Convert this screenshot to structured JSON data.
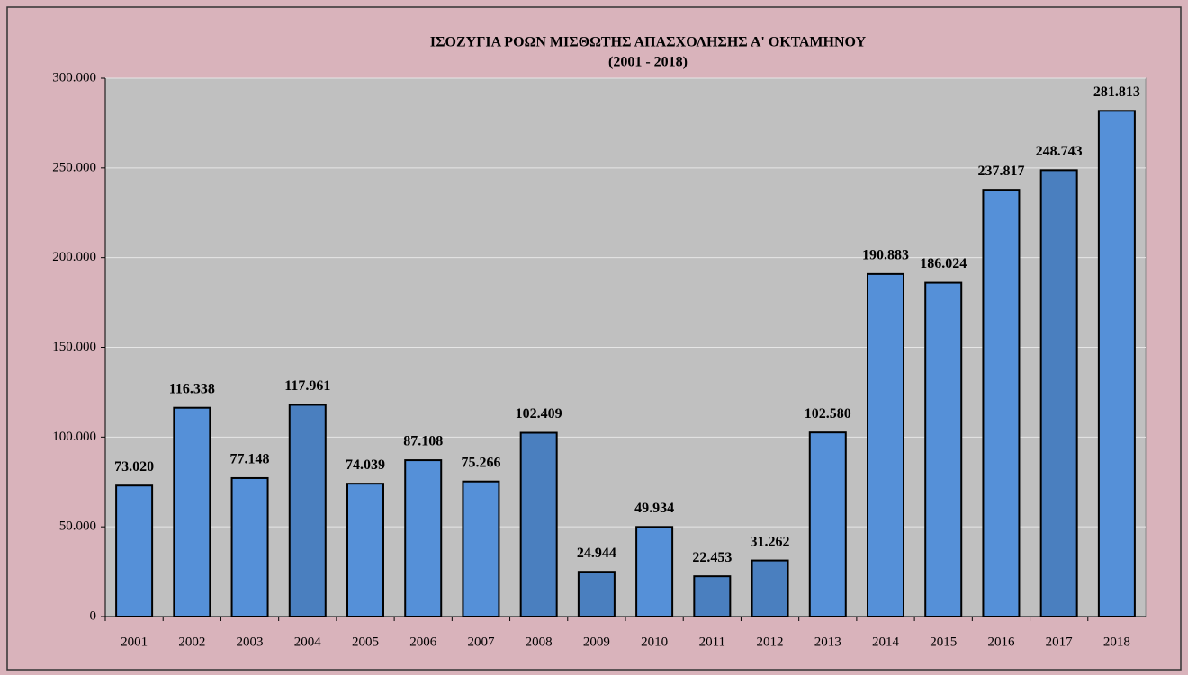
{
  "chart_data": {
    "type": "bar",
    "title": "ΙΣΟΖΥΓΙΑ ΡΟΩΝ ΜΙΣΘΩΤΗΣ ΑΠΑΣΧΟΛΗΣΗΣ Α' ΟΚΤΑΜΗΝΟΥ",
    "subtitle": "(2001 - 2018)",
    "categories": [
      "2001",
      "2002",
      "2003",
      "2004",
      "2005",
      "2006",
      "2007",
      "2008",
      "2009",
      "2010",
      "2011",
      "2012",
      "2013",
      "2014",
      "2015",
      "2016",
      "2017",
      "2018"
    ],
    "values": [
      73020,
      116338,
      77148,
      117961,
      74039,
      87108,
      75266,
      102409,
      24944,
      49934,
      22453,
      31262,
      102580,
      190883,
      186024,
      237817,
      248743,
      281813
    ],
    "value_labels": [
      "73.020",
      "116.338",
      "77.148",
      "117.961",
      "74.039",
      "87.108",
      "75.266",
      "102.409",
      "24.944",
      "49.934",
      "22.453",
      "31.262",
      "102.580",
      "190.883",
      "186.024",
      "237.817",
      "248.743",
      "281.813"
    ],
    "colors": [
      "#5590d8",
      "#5590d8",
      "#5590d8",
      "#4a7fbf",
      "#5590d8",
      "#5590d8",
      "#5590d8",
      "#4a7fbf",
      "#4a7fbf",
      "#5590d8",
      "#4a7fbf",
      "#4a7fbf",
      "#5590d8",
      "#5590d8",
      "#5590d8",
      "#5590d8",
      "#4a7fbf",
      "#5590d8"
    ],
    "ylim": [
      0,
      300000
    ],
    "yticks": [
      0,
      {
        "value": 50000,
        "label": "50.000"
      },
      {
        "value": 100000,
        "label": "100.000"
      },
      {
        "value": 150000,
        "label": "150.000"
      },
      {
        "value": 200000,
        "label": "200.000"
      },
      {
        "value": 250000,
        "label": "250.000"
      },
      {
        "value": 300000,
        "label": "300.000"
      }
    ],
    "grid": true
  }
}
